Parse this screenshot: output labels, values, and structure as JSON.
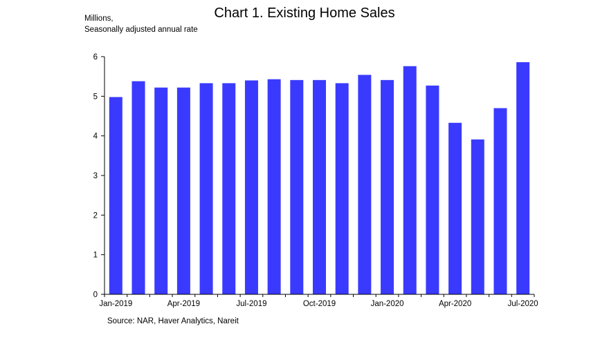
{
  "chart_data": {
    "type": "bar",
    "title": "Chart 1. Existing Home Sales",
    "ylabel_lines": [
      "Millions,",
      "Seasonally adjusted annual rate"
    ],
    "xlabel": "",
    "categories": [
      "Jan-2019",
      "Feb-2019",
      "Mar-2019",
      "Apr-2019",
      "May-2019",
      "Jun-2019",
      "Jul-2019",
      "Aug-2019",
      "Sep-2019",
      "Oct-2019",
      "Nov-2019",
      "Dec-2019",
      "Jan-2020",
      "Feb-2020",
      "Mar-2020",
      "Apr-2020",
      "May-2020",
      "Jun-2020",
      "Jul-2020"
    ],
    "values": [
      4.98,
      5.38,
      5.22,
      5.22,
      5.33,
      5.33,
      5.4,
      5.43,
      5.41,
      5.41,
      5.33,
      5.54,
      5.41,
      5.76,
      5.27,
      4.33,
      3.91,
      4.7,
      5.86
    ],
    "x_tick_labels": [
      "Jan-2019",
      "Apr-2019",
      "Jul-2019",
      "Oct-2019",
      "Jan-2020",
      "Apr-2020",
      "Jul-2020"
    ],
    "y_ticks": [
      0,
      1,
      2,
      3,
      4,
      5,
      6
    ],
    "ylim": [
      0,
      6
    ],
    "bar_color": "#3a3aff",
    "grid": false,
    "legend": "none",
    "source": "Source: NAR, Haver Analytics, Nareit"
  }
}
